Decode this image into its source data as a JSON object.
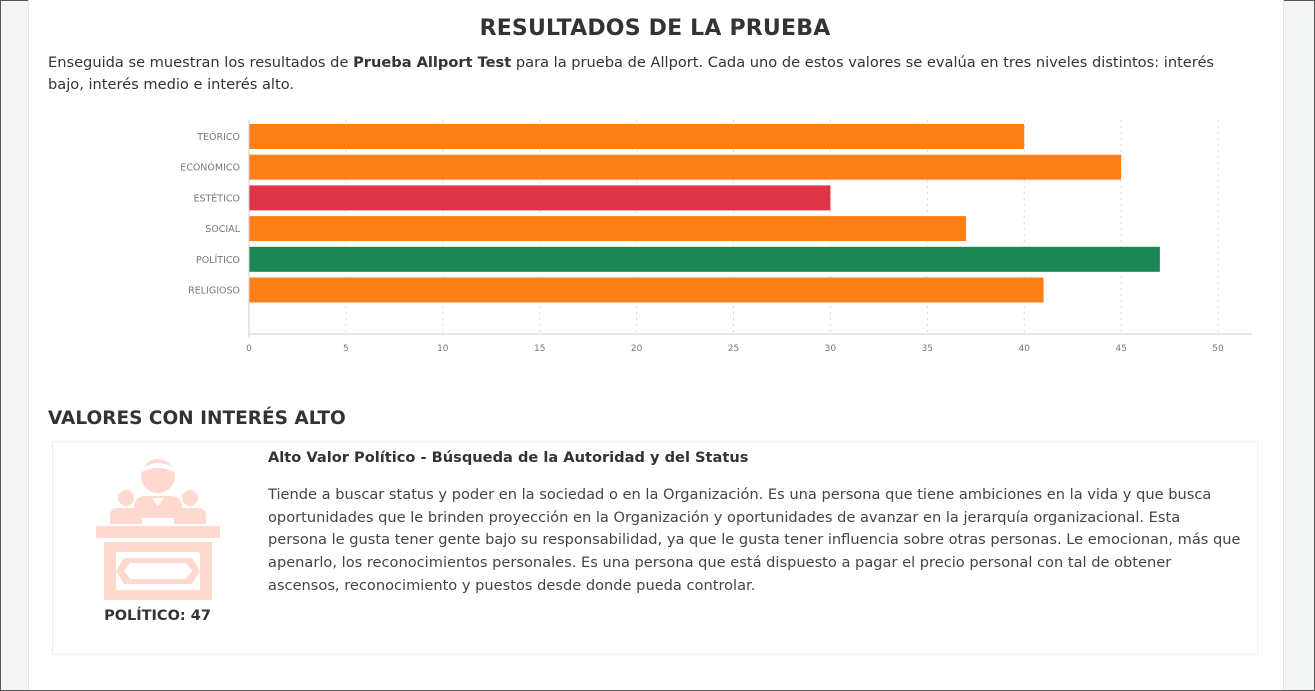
{
  "page": {
    "title": "RESULTADOS DE LA PRUEBA",
    "intro_before": "Enseguida se muestran los resultados de ",
    "intro_bold": "Prueba Allport Test",
    "intro_after": " para la prueba de Allport. Cada uno de estos valores se evalúa en tres niveles distintos: interés bajo, interés medio e interés alto."
  },
  "chart_data": {
    "type": "bar",
    "orientation": "horizontal",
    "categories": [
      "TEÓRICO",
      "ECONÓMICO",
      "ESTÉTICO",
      "SOCIAL",
      "POLÍTICO",
      "RELIGIOSO"
    ],
    "values": [
      40,
      45,
      30,
      37,
      47,
      41
    ],
    "colors": [
      "#ff7f17",
      "#ff7f17",
      "#dd3546",
      "#ff7f17",
      "#1a8754",
      "#ff7f17"
    ],
    "xlim": [
      0,
      50
    ],
    "xticks": [
      "0",
      "5",
      "10",
      "15",
      "20",
      "25",
      "30",
      "35",
      "40",
      "45",
      "50"
    ],
    "grid": true,
    "legend": "none"
  },
  "high_interest": {
    "section_title": "VALORES CON INTERÉS ALTO",
    "items": [
      {
        "score_label": "POLÍTICO: 47",
        "heading": "Alto Valor Político - Búsqueda de la Autoridad y del Status",
        "description": "Tiende a buscar status y poder en la sociedad o en la Organización. Es una persona que tiene ambiciones en la vida y que busca oportunidades que le brinden proyección en la Organización y oportunidades de avanzar en la jerarquía organizacional. Esta persona le gusta tener gente bajo su responsabilidad, ya que le gusta tener influencia sobre otras personas. Le emocionan, más que apenarlo, los reconocimientos personales. Es una persona que está dispuesto a pagar el precio personal con tal de obtener ascensos, reconocimiento y puestos desde donde pueda controlar.",
        "icon": "politician-podium-icon",
        "icon_color": "#ffd8cf"
      }
    ]
  }
}
